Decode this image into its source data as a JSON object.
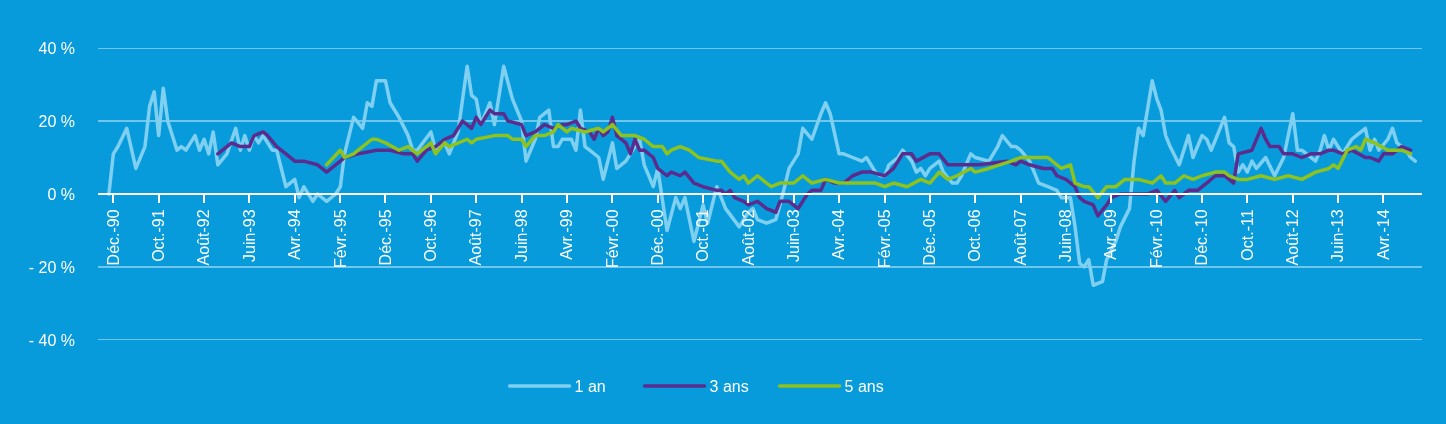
{
  "chart_data": {
    "type": "line",
    "xlim": [
      "1990-08-20",
      "2014-12-16"
    ],
    "xticks": [
      {
        "value": "1990-12",
        "label": "Déc.-90"
      },
      {
        "value": "1991-10",
        "label": "Oct.-91"
      },
      {
        "value": "1992-08",
        "label": "Août-92"
      },
      {
        "value": "1993-06",
        "label": "Juin-93"
      },
      {
        "value": "1994-04",
        "label": "Avr.-94"
      },
      {
        "value": "1995-02",
        "label": "Févr.-95"
      },
      {
        "value": "1995-12",
        "label": "Déc.-95"
      },
      {
        "value": "1996-10",
        "label": "Oct.-96"
      },
      {
        "value": "1997-08",
        "label": "Août-97"
      },
      {
        "value": "1998-06",
        "label": "Juin-98"
      },
      {
        "value": "1999-04",
        "label": "Avr.-99"
      },
      {
        "value": "2000-02",
        "label": "Févr.-00"
      },
      {
        "value": "2000-12",
        "label": "Déc.-00"
      },
      {
        "value": "2001-10",
        "label": "Oct.-01"
      },
      {
        "value": "2002-08",
        "label": "Août-02"
      },
      {
        "value": "2003-06",
        "label": "Juin-03"
      },
      {
        "value": "2004-04",
        "label": "Avr.-04"
      },
      {
        "value": "2005-02",
        "label": "Févr.-05"
      },
      {
        "value": "2005-12",
        "label": "Déc.-05"
      },
      {
        "value": "2006-10",
        "label": "Oct.-06"
      },
      {
        "value": "2007-08",
        "label": "Août-07"
      },
      {
        "value": "2008-06",
        "label": "Juin-08"
      },
      {
        "value": "2009-04",
        "label": "Avr.-09"
      },
      {
        "value": "2010-02",
        "label": "Févr.-10"
      },
      {
        "value": "2010-12",
        "label": "Déc.-10"
      },
      {
        "value": "2011-10",
        "label": "Oct.-11"
      },
      {
        "value": "2012-08",
        "label": "Août-12"
      },
      {
        "value": "2013-06",
        "label": "Juin-13"
      },
      {
        "value": "2014-04",
        "label": "Avr.-14"
      }
    ],
    "ylim": [
      -40,
      40
    ],
    "yticks": [
      {
        "value": 40,
        "label": "40 %"
      },
      {
        "value": 20,
        "label": "20 %"
      },
      {
        "value": 0,
        "label": "0 %"
      },
      {
        "value": -20,
        "label": "- 20 %"
      },
      {
        "value": -40,
        "label": "- 40 %"
      }
    ],
    "grid": "y",
    "legend": "bottom",
    "series": [
      {
        "name": "1 an",
        "color": "#7fd0f0",
        "x": [
          "1990-11",
          "1990-12",
          "1991-01",
          "1991-03",
          "1991-05",
          "1991-07",
          "1991-08",
          "1991-09",
          "1991-10",
          "1991-11",
          "1991-12",
          "1992-02",
          "1992-03",
          "1992-04",
          "1992-06",
          "1992-07",
          "1992-08",
          "1992-09",
          "1992-10",
          "1992-11",
          "1993-01",
          "1993-03",
          "1993-04",
          "1993-05",
          "1993-06",
          "1993-07",
          "1993-08",
          "1993-09",
          "1993-11",
          "1993-12",
          "1994-02",
          "1994-04",
          "1994-05",
          "1994-06",
          "1994-08",
          "1994-09",
          "1994-11",
          "1995-01",
          "1995-02",
          "1995-03",
          "1995-05",
          "1995-07",
          "1995-08",
          "1995-09",
          "1995-10",
          "1995-11",
          "1995-12",
          "1996-01",
          "1996-03",
          "1996-05",
          "1996-06",
          "1996-07",
          "1996-10",
          "1996-11",
          "1997-01",
          "1997-02",
          "1997-04",
          "1997-06",
          "1997-07",
          "1997-08",
          "1997-09",
          "1997-11",
          "1997-12",
          "1998-02",
          "1998-04",
          "1998-06",
          "1998-07",
          "1998-09",
          "1998-10",
          "1998-12",
          "1999-01",
          "1999-02",
          "1999-03",
          "1999-05",
          "1999-06",
          "1999-07",
          "1999-08",
          "1999-09",
          "1999-11",
          "1999-12",
          "2000-02",
          "2000-03",
          "2000-05",
          "2000-07",
          "2000-08",
          "2000-09",
          "2000-11",
          "2000-12",
          "2001-02",
          "2001-04",
          "2001-05",
          "2001-06",
          "2001-08",
          "2001-10",
          "2001-11",
          "2002-01",
          "2002-03",
          "2002-06",
          "2002-08",
          "2002-09",
          "2002-10",
          "2002-12",
          "2003-02",
          "2003-03",
          "2003-04",
          "2003-05",
          "2003-07",
          "2003-08",
          "2003-10",
          "2003-12",
          "2004-01",
          "2004-02",
          "2004-04",
          "2004-05",
          "2004-07",
          "2004-09",
          "2004-10",
          "2004-12",
          "2005-01",
          "2005-02",
          "2005-03",
          "2005-05",
          "2005-06",
          "2005-08",
          "2005-09",
          "2005-10",
          "2005-11",
          "2005-12",
          "2006-02",
          "2006-03",
          "2006-05",
          "2006-06",
          "2006-07",
          "2006-09",
          "2006-10",
          "2007-01",
          "2007-03",
          "2007-04",
          "2007-06",
          "2007-07",
          "2007-08",
          "2007-10",
          "2007-12",
          "2008-02",
          "2008-04",
          "2008-05",
          "2008-07",
          "2008-08",
          "2008-09",
          "2008-10",
          "2008-11",
          "2008-12",
          "2009-02",
          "2009-03",
          "2009-05",
          "2009-06",
          "2009-08",
          "2009-09",
          "2009-10",
          "2009-11",
          "2010-01",
          "2010-02",
          "2010-03",
          "2010-04",
          "2010-05",
          "2010-07",
          "2010-09",
          "2010-10",
          "2010-12",
          "2011-01",
          "2011-02",
          "2011-05",
          "2011-06",
          "2011-07",
          "2011-08",
          "2011-09",
          "2011-10",
          "2011-11",
          "2011-12",
          "2012-02",
          "2012-04",
          "2012-06",
          "2012-08",
          "2012-09",
          "2012-10",
          "2013-01",
          "2013-02",
          "2013-03",
          "2013-04",
          "2013-05",
          "2013-07",
          "2013-09",
          "2013-10",
          "2013-12",
          "2014-01",
          "2014-02",
          "2014-03",
          "2014-05",
          "2014-06",
          "2014-07",
          "2014-09",
          "2014-10",
          "2014-11"
        ],
        "values": [
          0,
          11,
          13,
          18,
          7,
          13,
          24,
          28,
          16,
          29,
          20,
          12,
          13,
          12,
          16,
          12,
          15,
          11,
          17,
          8,
          11,
          18,
          12,
          16,
          12,
          16,
          14,
          16,
          12,
          12,
          2,
          4,
          -1,
          2,
          -2,
          0,
          -2,
          0,
          2,
          11,
          21,
          18,
          25,
          24,
          31,
          31,
          31,
          25,
          21,
          16,
          12,
          12,
          17,
          12,
          14,
          11,
          17,
          35,
          27,
          26,
          19,
          25,
          19,
          35,
          26,
          20,
          9,
          15,
          21,
          23,
          13,
          13,
          15,
          15,
          12,
          23,
          13,
          12,
          10,
          4,
          14,
          7,
          9,
          13,
          15,
          8,
          2,
          7,
          -10,
          -1,
          -4,
          -1,
          -13,
          -3,
          -8,
          2,
          -4,
          -9,
          -5,
          -4,
          -7,
          -8,
          -7,
          -3,
          2,
          7,
          11,
          18,
          15,
          22,
          25,
          22,
          11,
          11,
          10,
          9,
          10,
          6,
          5,
          5,
          8,
          10,
          12,
          9,
          6,
          7,
          5,
          7,
          9,
          6,
          3,
          3,
          5,
          11,
          10,
          9,
          13,
          16,
          13,
          13,
          12,
          9,
          3,
          2,
          1,
          -1,
          -1,
          -9,
          -19,
          -20,
          -18,
          -25,
          -24,
          -18,
          -13,
          -9,
          -4,
          9,
          18,
          16,
          31,
          26,
          23,
          16,
          13,
          8,
          16,
          10,
          16,
          15,
          12,
          21,
          14,
          13,
          6,
          8,
          6,
          9,
          7,
          10,
          5,
          10,
          22,
          12,
          12,
          9,
          12,
          16,
          12,
          15,
          11,
          15,
          16,
          18,
          12,
          15,
          12,
          15,
          18,
          14,
          12,
          10,
          9
        ]
      },
      {
        "name": "3 ans",
        "color": "#5b2c8e",
        "x": [
          "1992-11",
          "1993-01",
          "1993-02",
          "1993-04",
          "1993-06",
          "1993-07",
          "1993-09",
          "1993-10",
          "1993-12",
          "1994-02",
          "1994-04",
          "1994-06",
          "1994-09",
          "1994-10",
          "1994-11",
          "1995-02",
          "1995-03",
          "1995-06",
          "1995-10",
          "1996-01",
          "1996-04",
          "1996-06",
          "1996-07",
          "1996-09",
          "1996-11",
          "1997-01",
          "1997-03",
          "1997-05",
          "1997-07",
          "1997-08",
          "1997-09",
          "1997-11",
          "1997-12",
          "1998-02",
          "1998-03",
          "1998-06",
          "1998-07",
          "1998-09",
          "1998-11",
          "1999-01",
          "1999-03",
          "1999-04",
          "1999-06",
          "1999-07",
          "1999-09",
          "1999-10",
          "1999-11",
          "1999-12",
          "2000-01",
          "2000-02",
          "2000-03",
          "2000-05",
          "2000-06",
          "2000-07",
          "2000-08",
          "2000-09",
          "2000-11",
          "2000-12",
          "2001-02",
          "2001-03",
          "2001-05",
          "2001-06",
          "2001-08",
          "2001-10",
          "2002-01",
          "2002-02",
          "2002-03",
          "2002-04",
          "2002-05",
          "2002-07",
          "2002-08",
          "2002-10",
          "2002-12",
          "2003-02",
          "2003-03",
          "2003-05",
          "2003-07",
          "2003-09",
          "2003-10",
          "2003-12",
          "2004-01",
          "2004-03",
          "2004-05",
          "2004-07",
          "2004-09",
          "2004-11",
          "2005-02",
          "2005-04",
          "2005-06",
          "2005-08",
          "2005-09",
          "2005-12",
          "2006-02",
          "2006-04",
          "2006-06",
          "2006-09",
          "2006-11",
          "2007-05",
          "2007-07",
          "2007-08",
          "2007-10",
          "2008-01",
          "2008-03",
          "2008-04",
          "2008-06",
          "2008-08",
          "2008-09",
          "2008-10",
          "2008-12",
          "2009-01",
          "2009-03",
          "2009-04",
          "2009-06",
          "2009-08",
          "2009-10",
          "2009-12",
          "2010-02",
          "2010-04",
          "2010-06",
          "2010-07",
          "2010-09",
          "2010-11",
          "2011-01",
          "2011-03",
          "2011-05",
          "2011-07",
          "2011-08",
          "2011-11",
          "2012-01",
          "2012-02",
          "2012-03",
          "2012-05",
          "2012-06",
          "2012-08",
          "2012-10",
          "2012-12",
          "2013-02",
          "2013-04",
          "2013-05",
          "2013-07",
          "2013-09",
          "2013-12",
          "2014-01",
          "2014-03",
          "2014-04",
          "2014-06",
          "2014-08",
          "2014-10"
        ],
        "values": [
          11,
          13,
          14,
          13,
          13,
          16,
          17,
          16,
          13,
          11,
          9,
          9,
          8,
          7,
          6,
          9,
          10,
          11,
          12,
          12,
          11,
          11,
          9,
          12,
          13,
          15,
          16,
          20,
          18,
          21,
          19,
          23,
          22,
          22,
          20,
          19,
          16,
          17,
          19,
          18,
          19,
          19,
          20,
          18,
          17,
          15,
          18,
          16,
          17,
          21,
          16,
          14,
          11,
          15,
          12,
          12,
          10,
          7,
          5,
          6,
          5,
          6,
          3,
          2,
          1,
          1,
          0,
          1,
          -1,
          -2,
          -3,
          -2,
          -4,
          -5,
          -2,
          -2,
          -4,
          0,
          1,
          1,
          4,
          3,
          3,
          5,
          6,
          6,
          5,
          7,
          11,
          11,
          9,
          11,
          11,
          8,
          8,
          8,
          8,
          9,
          8,
          9,
          8,
          7,
          7,
          5,
          4,
          2,
          -1,
          -2,
          -3,
          -6,
          -3,
          -1,
          0,
          0,
          0,
          0,
          1,
          -2,
          1,
          -1,
          1,
          1,
          3,
          5,
          5,
          3,
          11,
          12,
          18,
          15,
          13,
          13,
          11,
          11,
          10,
          11,
          11,
          12,
          12,
          11,
          12,
          10,
          10,
          9,
          11,
          11,
          13,
          12
        ]
      },
      {
        "name": "5 ans",
        "color": "#8dc21f",
        "x": [
          "1994-11",
          "1995-02",
          "1995-03",
          "1995-05",
          "1995-06",
          "1995-09",
          "1995-10",
          "1995-12",
          "1996-03",
          "1996-05",
          "1996-07",
          "1996-10",
          "1996-11",
          "1997-01",
          "1997-02",
          "1997-06",
          "1997-07",
          "1997-08",
          "1997-12",
          "1998-03",
          "1998-04",
          "1998-06",
          "1998-07",
          "1998-09",
          "1998-11",
          "1999-01",
          "1999-02",
          "1999-04",
          "1999-05",
          "1999-08",
          "1999-11",
          "1999-12",
          "2000-02",
          "2000-04",
          "2000-07",
          "2000-09",
          "2000-11",
          "2001-01",
          "2001-02",
          "2001-03",
          "2001-05",
          "2001-07",
          "2001-09",
          "2002-01",
          "2002-02",
          "2002-04",
          "2002-06",
          "2002-07",
          "2002-08",
          "2002-10",
          "2002-12",
          "2003-01",
          "2003-03",
          "2003-06",
          "2003-08",
          "2003-10",
          "2004-01",
          "2004-04",
          "2004-07",
          "2004-12",
          "2005-02",
          "2005-04",
          "2005-07",
          "2005-10",
          "2005-12",
          "2006-02",
          "2006-04",
          "2006-06",
          "2006-09",
          "2006-10",
          "2007-01",
          "2007-06",
          "2007-08",
          "2007-10",
          "2008-02",
          "2008-03",
          "2008-05",
          "2008-07",
          "2008-08",
          "2008-10",
          "2008-11",
          "2009-01",
          "2009-03",
          "2009-05",
          "2009-07",
          "2009-10",
          "2010-01",
          "2010-03",
          "2010-04",
          "2010-06",
          "2010-08",
          "2010-10",
          "2010-12",
          "2011-03",
          "2011-05",
          "2011-06",
          "2011-08",
          "2011-10",
          "2012-01",
          "2012-04",
          "2012-07",
          "2012-10",
          "2013-01",
          "2013-04",
          "2013-05",
          "2013-06",
          "2013-08",
          "2013-10",
          "2013-11",
          "2013-12",
          "2014-02",
          "2014-05",
          "2014-08",
          "2014-10"
        ],
        "values": [
          8,
          12,
          10,
          11,
          12,
          15,
          15,
          14,
          12,
          13,
          11,
          14,
          11,
          14,
          13,
          15,
          14,
          15,
          16,
          16,
          15,
          15,
          13,
          16,
          16,
          17,
          19,
          17,
          18,
          17,
          18,
          17,
          19,
          16,
          16,
          15,
          13,
          13,
          11,
          12,
          13,
          12,
          10,
          9,
          9,
          6,
          4,
          5,
          3,
          5,
          3,
          2,
          3,
          3,
          5,
          3,
          4,
          3,
          3,
          3,
          2,
          3,
          2,
          4,
          3,
          6,
          4,
          5,
          7,
          6,
          7,
          9,
          10,
          10,
          10,
          9,
          7,
          8,
          3,
          2,
          2,
          -1,
          2,
          2,
          4,
          4,
          3,
          5,
          3,
          3,
          5,
          4,
          5,
          6,
          6,
          5,
          4,
          4,
          5,
          4,
          5,
          4,
          6,
          7,
          8,
          7,
          12,
          13,
          12,
          15,
          14,
          12,
          12,
          11
        ]
      }
    ]
  }
}
